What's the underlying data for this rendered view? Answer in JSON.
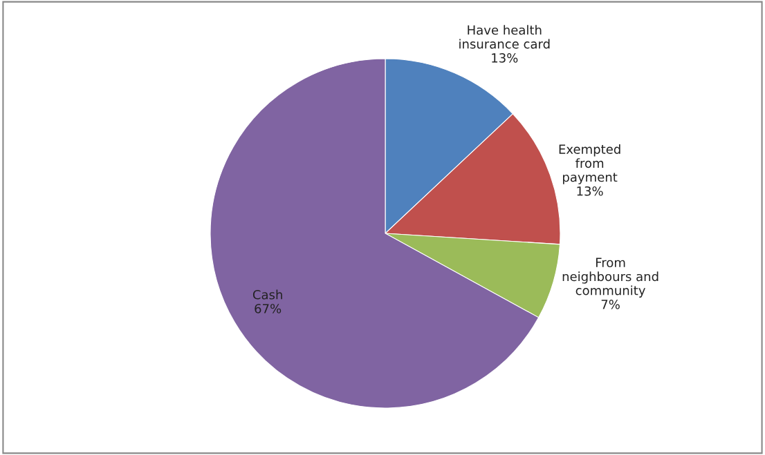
{
  "chart_data": {
    "type": "pie",
    "categories": [
      "Have health\ninsurance card",
      "Exempted\nfrom\npayment",
      "From\nneighbours and\ncommunity",
      "Cash"
    ],
    "values": [
      13,
      13,
      7,
      67
    ],
    "value_labels": [
      "13%",
      "13%",
      "7%",
      "67%"
    ],
    "colors": [
      "#4f81bd",
      "#c0504d",
      "#9bbb59",
      "#8064a2"
    ],
    "legend": false
  }
}
